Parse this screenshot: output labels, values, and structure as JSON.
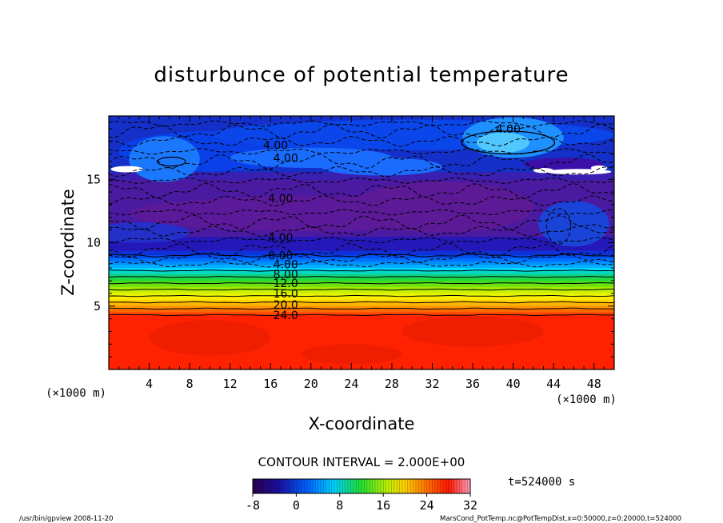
{
  "chart_data": {
    "type": "heatmap",
    "title": "disturbunce of potential temperature",
    "xlabel": "X-coordinate",
    "ylabel": "Z-coordinate",
    "x_unit_left": "(×1000 m)",
    "x_unit_right": "(×1000 m)",
    "xlim": [
      0,
      50
    ],
    "ylim": [
      0,
      20
    ],
    "x_ticks": [
      "4",
      "8",
      "12",
      "16",
      "20",
      "24",
      "28",
      "32",
      "36",
      "40",
      "44",
      "48"
    ],
    "x_tick_values": [
      4,
      8,
      12,
      16,
      20,
      24,
      28,
      32,
      36,
      40,
      44,
      48
    ],
    "y_ticks": [
      "5",
      "10",
      "15"
    ],
    "y_tick_values": [
      5,
      10,
      15
    ],
    "contour_interval_text": "CONTOUR INTERVAL = 2.000E+00",
    "contour_labels": [
      {
        "text": "4.00",
        "x": 39.5,
        "z": 19.0
      },
      {
        "text": "4.00",
        "x": 16.5,
        "z": 17.7
      },
      {
        "text": "4.00",
        "x": 17.5,
        "z": 16.7
      },
      {
        "text": "4.00",
        "x": 17.0,
        "z": 13.5
      },
      {
        "text": "4.00",
        "x": 17.0,
        "z": 10.4
      },
      {
        "text": "0.00",
        "x": 17.0,
        "z": 9.0
      },
      {
        "text": "4.00",
        "x": 17.5,
        "z": 8.3
      },
      {
        "text": "8.00",
        "x": 17.5,
        "z": 7.5
      },
      {
        "text": "12.0",
        "x": 17.5,
        "z": 6.8
      },
      {
        "text": "16.0",
        "x": 17.5,
        "z": 6.0
      },
      {
        "text": "20.0",
        "x": 17.5,
        "z": 5.1
      },
      {
        "text": "24.0",
        "x": 17.5,
        "z": 4.3
      }
    ],
    "colorbar": {
      "min": -8,
      "max": 32,
      "tick_labels": [
        "-8",
        "0",
        "8",
        "16",
        "24",
        "32"
      ],
      "tick_values": [
        -8,
        0,
        8,
        16,
        24,
        32
      ]
    },
    "time_label": "t=524000 s",
    "footer_left": "/usr/bin/gpview  2008-11-20",
    "footer_right": "MarsCond_PotTemp.nc@PotTempDist,x=0:50000,z=0:20000,t=524000",
    "colors": {
      "low": "#2a0050",
      "blue": "#0044ff",
      "cyan": "#00ccff",
      "green": "#22dd22",
      "yellow": "#ffee00",
      "orange": "#ff8800",
      "red": "#ff2200",
      "pink": "#ff88aa"
    }
  }
}
